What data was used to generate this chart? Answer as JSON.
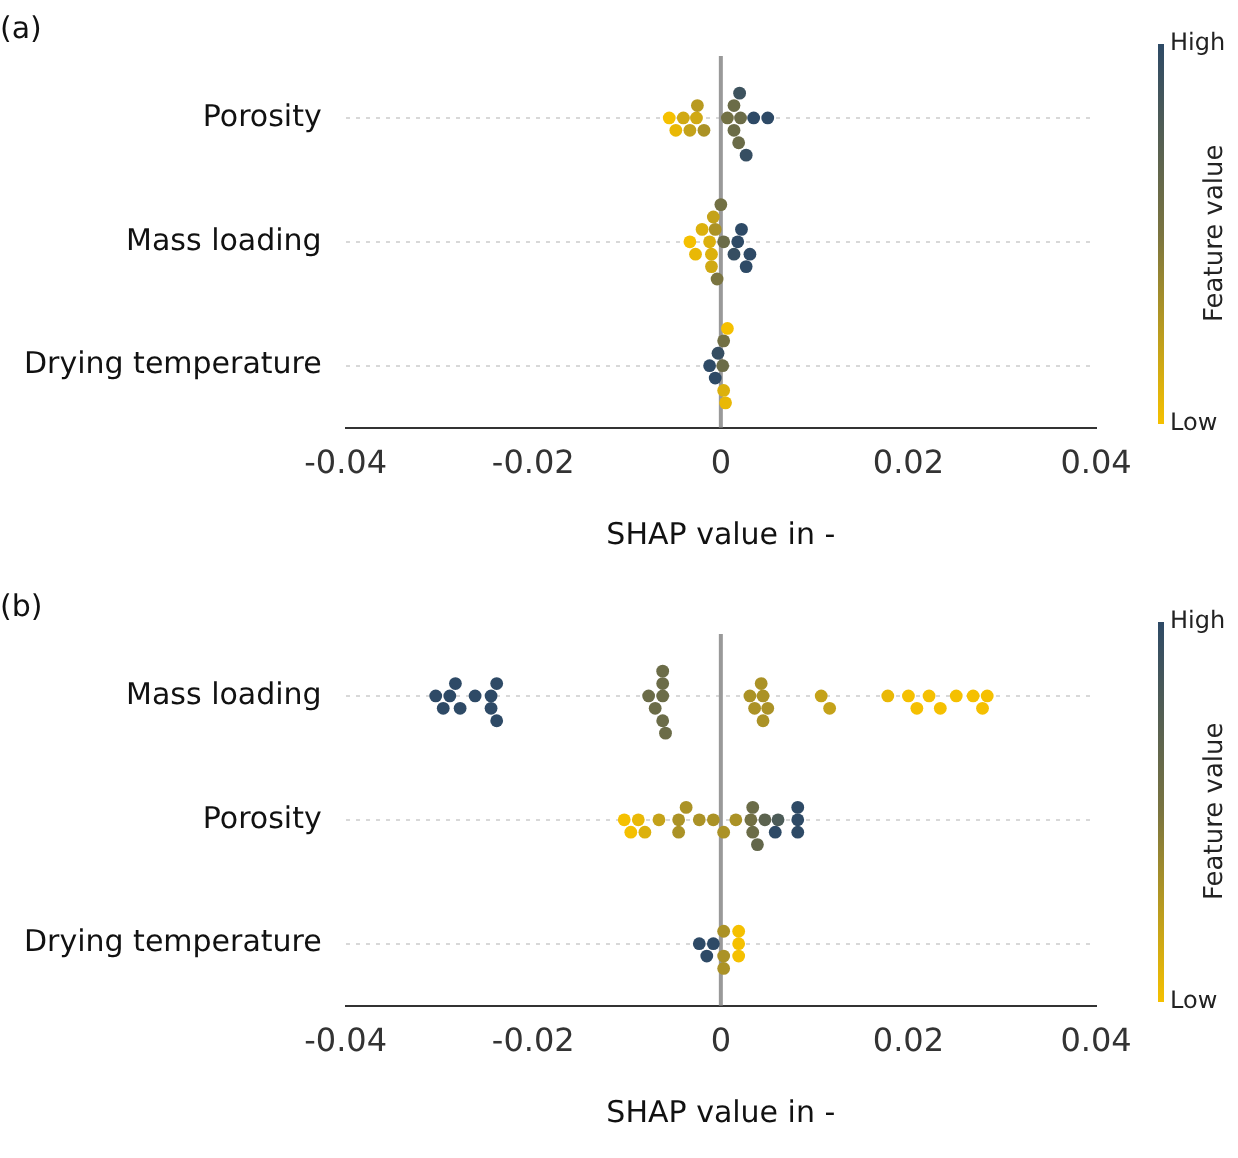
{
  "chart_data": [
    {
      "type": "scatter",
      "title": "(a)",
      "xlabel": "SHAP value in -",
      "clabel": "Feature value",
      "annotations": [
        "High",
        "Low"
      ],
      "orientation": "horizontal",
      "grid": "y",
      "legend": false,
      "categories": [
        "Porosity",
        "Mass loading",
        "Drying temperature"
      ],
      "xlim": [
        -0.04,
        0.04
      ],
      "xticks": [
        -0.04,
        -0.02,
        0,
        0.02,
        0.04
      ],
      "ref_lines": [
        {
          "axis": "x",
          "value": 0,
          "color": "#999999"
        }
      ],
      "series": [
        {
          "x": [
            "Porosity",
            "Porosity",
            "Porosity",
            "Porosity",
            "Porosity",
            "Porosity",
            "Porosity",
            "Porosity",
            "Porosity",
            "Porosity",
            "Porosity",
            "Porosity",
            "Porosity",
            "Porosity",
            "Porosity",
            "Porosity"
          ],
          "values": [
            -0.0026,
            -0.0055,
            -0.0048,
            -0.004,
            -0.0033,
            -0.0025,
            -0.0018,
            0.0007,
            0.0014,
            0.0014,
            0.0019,
            0.0021,
            0.002,
            0.0027,
            0.0035,
            0.005
          ],
          "colors": [
            "#d0a913",
            "#f5c000",
            "#e9b806",
            "#d0a913",
            "#c4a21a",
            "#b89a20",
            "#ab9226",
            "#727044",
            "#6b6c48",
            "#6b6c48",
            "#6b6c48",
            "#6b6c48",
            "#3d525e",
            "#364e62",
            "#2e4a66",
            "#2e4a66"
          ]
        },
        {
          "x": [
            "Mass loading",
            "Mass loading",
            "Mass loading",
            "Mass loading",
            "Mass loading",
            "Mass loading",
            "Mass loading",
            "Mass loading",
            "Mass loading",
            "Mass loading",
            "Mass loading",
            "Mass loading",
            "Mass loading",
            "Mass loading",
            "Mass loading",
            "Mass loading"
          ],
          "values": [
            -0.0033,
            -0.0027,
            -0.002,
            -0.0012,
            -0.001,
            -0.001,
            -0.0008,
            -0.0006,
            -0.0004,
            0.0,
            0.0003,
            0.0014,
            0.0018,
            0.0022,
            0.0027,
            0.0031
          ],
          "colors": [
            "#f5c000",
            "#e9b806",
            "#dcb10d",
            "#dcb10d",
            "#dcb10d",
            "#d0a913",
            "#c4a21a",
            "#ab9226",
            "#7a7440",
            "#727044",
            "#6b6c48",
            "#364e62",
            "#2e4a66",
            "#2e4a66",
            "#2e4a66",
            "#2e4a66"
          ]
        },
        {
          "x": [
            "Drying temperature",
            "Drying temperature",
            "Drying temperature",
            "Drying temperature",
            "Drying temperature",
            "Drying temperature",
            "Drying temperature",
            "Drying temperature"
          ],
          "values": [
            -0.0012,
            -0.0006,
            -0.0003,
            0.0002,
            0.0003,
            0.0005,
            0.0007,
            0.0003
          ],
          "colors": [
            "#2e4a66",
            "#2e4a66",
            "#364e62",
            "#6b6c48",
            "#dcb10d",
            "#e9b806",
            "#f5c000",
            "#727044"
          ]
        }
      ]
    },
    {
      "type": "scatter",
      "title": "(b)",
      "xlabel": "SHAP value in -",
      "clabel": "Feature value",
      "annotations": [
        "High",
        "Low"
      ],
      "orientation": "horizontal",
      "grid": "y",
      "legend": false,
      "categories": [
        "Mass loading",
        "Porosity",
        "Drying temperature"
      ],
      "xlim": [
        -0.04,
        0.04
      ],
      "xticks": [
        -0.04,
        -0.02,
        0,
        0.02,
        0.04
      ],
      "ref_lines": [
        {
          "axis": "x",
          "value": 0,
          "color": "#999999"
        }
      ],
      "series": [
        {
          "x": [
            "Mass loading",
            "Mass loading",
            "Mass loading",
            "Mass loading",
            "Mass loading",
            "Mass loading",
            "Mass loading",
            "Mass loading",
            "Mass loading",
            "Mass loading",
            "Mass loading",
            "Mass loading",
            "Mass loading",
            "Mass loading",
            "Mass loading",
            "Mass loading",
            "Mass loading",
            "Mass loading",
            "Mass loading",
            "Mass loading",
            "Mass loading",
            "Mass loading",
            "Mass loading",
            "Mass loading",
            "Mass loading",
            "Mass loading",
            "Mass loading",
            "Mass loading",
            "Mass loading",
            "Mass loading",
            "Mass loading",
            "Mass loading",
            "Mass loading",
            "Mass loading"
          ],
          "values": [
            -0.0304,
            -0.0296,
            -0.0289,
            -0.0283,
            -0.0278,
            -0.0262,
            -0.0245,
            -0.0245,
            -0.0239,
            -0.0239,
            -0.0077,
            -0.007,
            -0.0062,
            -0.0062,
            -0.0062,
            -0.0062,
            -0.0059,
            0.0031,
            0.0036,
            0.0043,
            0.0045,
            0.0045,
            0.005,
            0.0107,
            0.0116,
            0.0178,
            0.02,
            0.0209,
            0.0222,
            0.0234,
            0.0251,
            0.0269,
            0.0279,
            0.0284
          ],
          "colors": [
            "#2e4a66",
            "#2e4a66",
            "#2e4a66",
            "#2e4a66",
            "#2e4a66",
            "#2e4a66",
            "#2e4a66",
            "#2e4a66",
            "#2e4a66",
            "#2e4a66",
            "#6b6c48",
            "#6b6c48",
            "#6b6c48",
            "#6b6c48",
            "#6b6c48",
            "#6b6c48",
            "#6b6c48",
            "#ab9226",
            "#ab9226",
            "#ab9226",
            "#ab9226",
            "#ab9226",
            "#ab9226",
            "#c4a21a",
            "#c4a21a",
            "#e9b806",
            "#f5c000",
            "#f5c000",
            "#f5c000",
            "#f5c000",
            "#f5c000",
            "#f5c000",
            "#f5c000",
            "#f5c000"
          ]
        },
        {
          "x": [
            "Porosity",
            "Porosity",
            "Porosity",
            "Porosity",
            "Porosity",
            "Porosity",
            "Porosity",
            "Porosity",
            "Porosity",
            "Porosity",
            "Porosity",
            "Porosity",
            "Porosity",
            "Porosity",
            "Porosity",
            "Porosity",
            "Porosity",
            "Porosity",
            "Porosity",
            "Porosity",
            "Porosity",
            "Porosity"
          ],
          "values": [
            -0.0103,
            -0.0096,
            -0.0088,
            -0.0081,
            -0.0066,
            -0.0045,
            -0.0045,
            -0.0037,
            -0.0023,
            -0.0008,
            0.0003,
            0.0016,
            0.0032,
            0.0034,
            0.0039,
            0.0047,
            0.0058,
            0.0061,
            0.0082,
            0.0082,
            0.0082,
            0.0034
          ],
          "colors": [
            "#f5c000",
            "#f5c000",
            "#e9b806",
            "#dcb10d",
            "#c4a21a",
            "#ab9226",
            "#ab9226",
            "#ab9226",
            "#ab9226",
            "#ab9226",
            "#ab9226",
            "#ab9226",
            "#727044",
            "#6b6c48",
            "#63674b",
            "#5c634f",
            "#2e4a66",
            "#4c5b57",
            "#2e4a66",
            "#2e4a66",
            "#2e4a66",
            "#6b6c48"
          ]
        },
        {
          "x": [
            "Drying temperature",
            "Drying temperature",
            "Drying temperature",
            "Drying temperature",
            "Drying temperature",
            "Drying temperature",
            "Drying temperature",
            "Drying temperature",
            "Drying temperature"
          ],
          "values": [
            -0.0023,
            -0.0015,
            -0.0008,
            0.0003,
            0.0003,
            0.0003,
            0.0019,
            0.0019,
            0.0019
          ],
          "colors": [
            "#2e4a66",
            "#2e4a66",
            "#2e4a66",
            "#ab9226",
            "#ab9226",
            "#ab9226",
            "#f5c000",
            "#f5c000",
            "#f5c000"
          ]
        }
      ]
    }
  ]
}
